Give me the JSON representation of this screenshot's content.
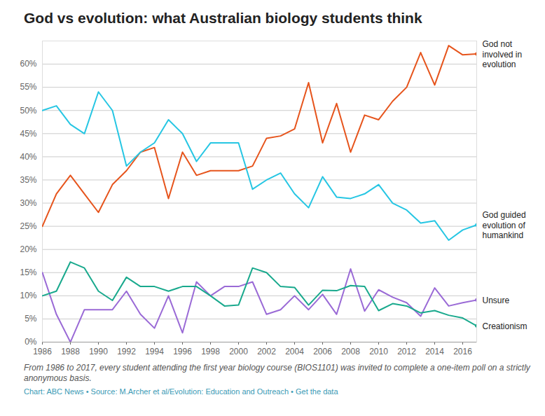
{
  "chart_data": {
    "type": "line",
    "title": "God vs evolution: what Australian biology students think",
    "caption": "From 1986 to 2017, every student attending the first year biology course (BIOS1101) was invited to complete a one-item poll on a strictly anonymous basis.",
    "source": "Chart: ABC News • Source: M.Archer et al/Evolution: Education and Outreach • Get the data",
    "x": [
      1986,
      1987,
      1988,
      1989,
      1990,
      1991,
      1992,
      1993,
      1994,
      1995,
      1996,
      1997,
      1998,
      1999,
      2000,
      2001,
      2002,
      2003,
      2004,
      2005,
      2006,
      2007,
      2008,
      2009,
      2010,
      2011,
      2012,
      2013,
      2014,
      2015,
      2016,
      2017
    ],
    "xlim": [
      1986,
      2017
    ],
    "xticks": [
      1986,
      1988,
      1990,
      1992,
      1994,
      1996,
      1998,
      2000,
      2002,
      2004,
      2006,
      2008,
      2010,
      2012,
      2014,
      2016
    ],
    "ylim": [
      0,
      65
    ],
    "yticks": [
      {
        "value": 0,
        "label": "0%"
      },
      {
        "value": 5,
        "label": "5%"
      },
      {
        "value": 10,
        "label": "10%"
      },
      {
        "value": 15,
        "label": "15%"
      },
      {
        "value": 20,
        "label": "20%"
      },
      {
        "value": 25,
        "label": "25%"
      },
      {
        "value": 30,
        "label": "30%"
      },
      {
        "value": 35,
        "label": "35%"
      },
      {
        "value": 40,
        "label": "40%"
      },
      {
        "value": 45,
        "label": "45%"
      },
      {
        "value": 50,
        "label": "50%"
      },
      {
        "value": 55,
        "label": "55%"
      },
      {
        "value": 60,
        "label": "60%"
      }
    ],
    "grid": true,
    "series": [
      {
        "name": "God not involved in evolution",
        "color": "#e6541c",
        "values": [
          25,
          32,
          36,
          32,
          28,
          34,
          37,
          41,
          42,
          31,
          41,
          36,
          37,
          37,
          37,
          38,
          44,
          44.5,
          46,
          56,
          43,
          51.5,
          41,
          49,
          48,
          52,
          55,
          62.5,
          55.5,
          64,
          62,
          62.2
        ]
      },
      {
        "name": "God guided evolution of humankind",
        "color": "#26c6e3",
        "values": [
          50,
          51,
          47,
          45,
          54,
          50,
          38,
          41,
          43,
          48,
          45,
          39,
          43,
          43,
          43,
          33,
          35,
          36.5,
          32,
          29,
          35.7,
          31.3,
          31,
          32,
          34,
          30,
          28.5,
          25.7,
          26.2,
          22,
          24.2,
          25.3
        ]
      },
      {
        "name": "Unsure",
        "color": "#9a6ad6",
        "values": [
          15,
          6,
          0,
          7,
          7,
          7,
          11,
          6,
          3,
          10,
          2,
          13,
          10,
          12,
          12,
          13,
          6,
          7,
          10,
          7,
          10.3,
          6,
          15.8,
          6.7,
          11.3,
          9.7,
          8.5,
          5.6,
          11.7,
          7.8,
          8.5,
          9.1
        ]
      },
      {
        "name": "Creationism",
        "color": "#19a98d",
        "values": [
          10,
          11,
          17.3,
          16,
          11,
          9,
          14,
          12,
          12,
          11,
          12,
          12,
          10,
          7.8,
          8,
          16,
          15,
          12,
          11.8,
          8,
          11.2,
          11.1,
          12.2,
          12,
          6.8,
          8.3,
          7.8,
          6.3,
          6.8,
          5.8,
          5.2,
          3.5
        ]
      }
    ]
  }
}
